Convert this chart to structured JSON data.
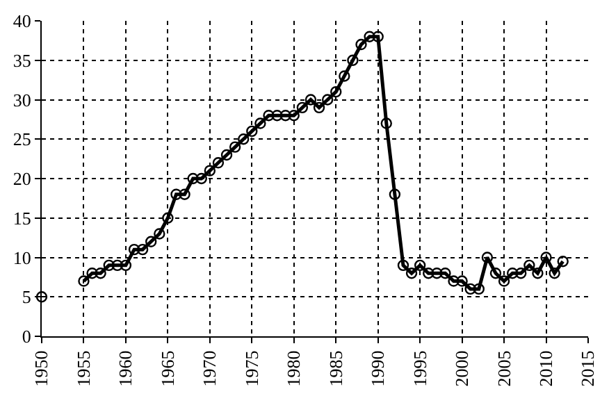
{
  "chart_data": {
    "type": "line",
    "marker": "circle",
    "line_style": "solid",
    "grid": true,
    "legend": false,
    "x": [
      1950,
      1952,
      1955,
      1956,
      1957,
      1958,
      1959,
      1960,
      1961,
      1962,
      1963,
      1964,
      1965,
      1966,
      1967,
      1968,
      1969,
      1970,
      1971,
      1972,
      1973,
      1974,
      1975,
      1976,
      1977,
      1978,
      1979,
      1980,
      1981,
      1982,
      1983,
      1984,
      1985,
      1986,
      1987,
      1988,
      1989,
      1990,
      1991,
      1992,
      1993,
      1994,
      1995,
      1996,
      1997,
      1998,
      1999,
      2000,
      2001,
      2002,
      2003,
      2004,
      2005,
      2006,
      2007,
      2008,
      2009,
      2010,
      2011,
      2012
    ],
    "series": [
      {
        "color": "#000000",
        "values": [
          5,
          null,
          7,
          8,
          8,
          9,
          9,
          9,
          11,
          11,
          12,
          13,
          15,
          18,
          18,
          20,
          20,
          21,
          22,
          23,
          24,
          25,
          26,
          27,
          28,
          28,
          28,
          28,
          29,
          30,
          29,
          30,
          31,
          33,
          35,
          37,
          38,
          38,
          27,
          18,
          9,
          8,
          9,
          8,
          8,
          8,
          7,
          7,
          6,
          6,
          10,
          8,
          7,
          8,
          8,
          9,
          8,
          10,
          8,
          9.5
        ]
      }
    ],
    "xlim": [
      1950,
      2015
    ],
    "xticks": [
      1950,
      1955,
      1960,
      1965,
      1970,
      1975,
      1980,
      1985,
      1990,
      1995,
      2000,
      2005,
      2010,
      2015
    ],
    "ylim": [
      0,
      40
    ],
    "yticks": [
      0,
      5,
      10,
      15,
      20,
      25,
      30,
      35,
      40
    ]
  }
}
